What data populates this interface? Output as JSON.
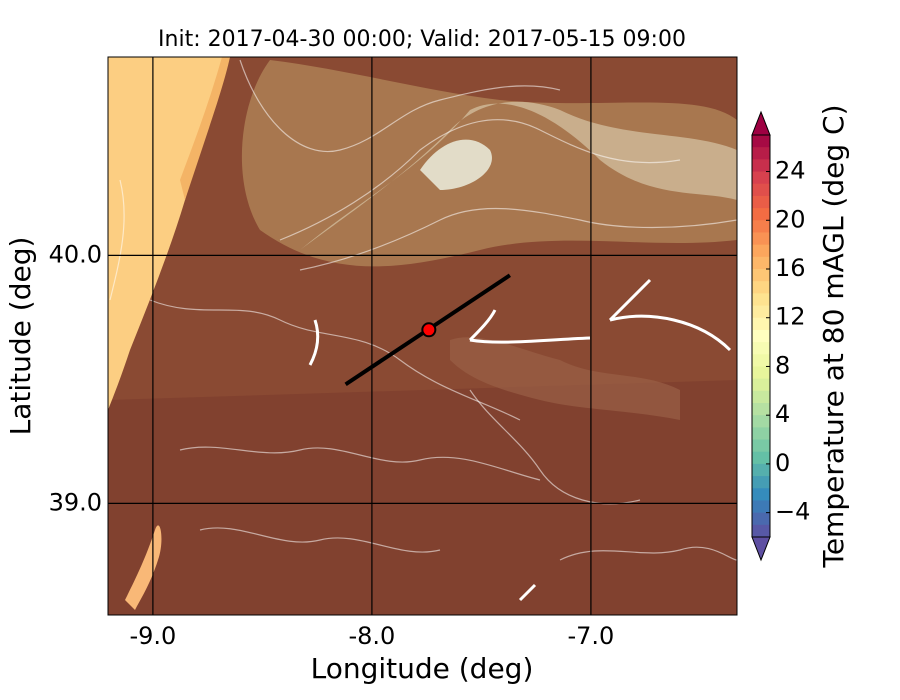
{
  "chart_data": {
    "type": "map",
    "title": "Init: 2017-04-30 00:00; Valid: 2017-05-15 09:00",
    "x_label": "Longitude (deg)",
    "y_label": "Latitude (deg)",
    "xlim": [
      -9.205,
      -6.333
    ],
    "ylim": [
      38.55,
      40.8
    ],
    "xticks": [
      {
        "value": -9.0,
        "label": "-9.0"
      },
      {
        "value": -8.0,
        "label": "-8.0"
      },
      {
        "value": -7.0,
        "label": "-7.0"
      }
    ],
    "yticks": [
      {
        "value": 39.0,
        "label": "39.0"
      },
      {
        "value": 40.0,
        "label": "40.0"
      }
    ],
    "grid": true,
    "section": {
      "color": "#000000",
      "x": [
        -8.12,
        -7.37
      ],
      "y": [
        39.48,
        39.92
      ]
    },
    "marker": {
      "color": "#ff0000",
      "x": -7.74,
      "y": 39.7
    },
    "colorbar": {
      "label": "Temperature at 80 mAGL (deg C)",
      "colormap": "Spectral_r",
      "clim": [
        -6,
        27
      ],
      "ticks": [
        {
          "value": -4,
          "label": "−4"
        },
        0,
        4,
        8,
        12,
        16,
        20,
        24
      ]
    }
  }
}
